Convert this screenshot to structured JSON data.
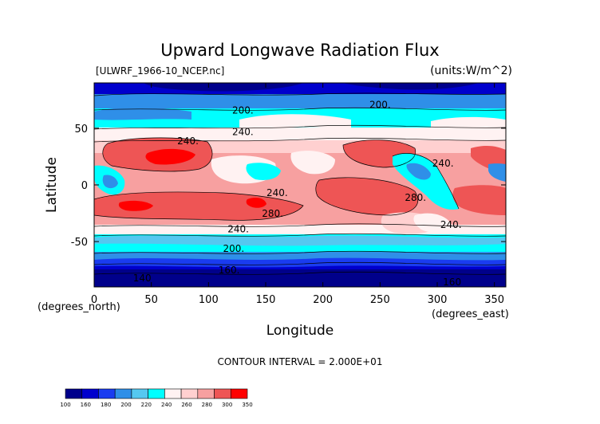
{
  "chart_data": {
    "type": "filled-contour",
    "title": "Upward Longwave Radiation Flux",
    "file_label": "[ULWRF_1966-10_NCEP.nc]",
    "units": "(units:W/m^2)",
    "xlabel": "Longitude",
    "ylabel": "Latitude",
    "x_unit_left": "(degrees_north)",
    "x_unit_right": "(degrees_east)",
    "xlim": [
      0,
      360
    ],
    "ylim": [
      -90,
      90
    ],
    "x_ticks": [
      0,
      50,
      100,
      150,
      200,
      250,
      300,
      350
    ],
    "y_ticks": [
      -50,
      0,
      50
    ],
    "contour_interval_text": "CONTOUR INTERVAL = 2.000E+01",
    "contour_labels": [
      {
        "text": "200.",
        "lon": 130,
        "lat": 63
      },
      {
        "text": "200.",
        "lon": 250,
        "lat": 68
      },
      {
        "text": "240.",
        "lon": 130,
        "lat": 44
      },
      {
        "text": "240.",
        "lon": 82,
        "lat": 36
      },
      {
        "text": "240.",
        "lon": 160,
        "lat": -10
      },
      {
        "text": "280.",
        "lon": 156,
        "lat": -28
      },
      {
        "text": "280.",
        "lon": 281,
        "lat": -14
      },
      {
        "text": "240.",
        "lon": 305,
        "lat": 16
      },
      {
        "text": "240.",
        "lon": 312,
        "lat": -38
      },
      {
        "text": "240.",
        "lon": 126,
        "lat": -42
      },
      {
        "text": "200.",
        "lon": 122,
        "lat": -59
      },
      {
        "text": "160.",
        "lon": 118,
        "lat": -78
      },
      {
        "text": "140",
        "lon": 42,
        "lat": -85
      },
      {
        "text": "160",
        "lon": 313,
        "lat": -95
      }
    ],
    "colorbar": {
      "colors": [
        "#00008b",
        "#0000cd",
        "#1a3cf0",
        "#2f8fe8",
        "#55c8f0",
        "#00ffff",
        "#fff2f2",
        "#ffd0d0",
        "#f7a0a0",
        "#ee5555",
        "#ff0000"
      ],
      "labels": [
        "100",
        "160",
        "180",
        "200",
        "220",
        "240",
        "260",
        "280",
        "300",
        "350"
      ]
    }
  }
}
